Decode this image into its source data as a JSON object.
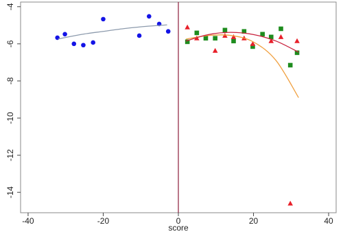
{
  "chart_data": {
    "type": "scatter",
    "x_label": "score",
    "xlim": [
      -42,
      42
    ],
    "xticks": [
      -40,
      -20,
      0,
      20,
      40
    ],
    "ylim": [
      -15.1,
      -3.75
    ],
    "yticks": [
      -4,
      -6,
      -8,
      -10,
      -12,
      -14
    ],
    "reference_line_x": 0,
    "reference_line_color": "#8b1a3a",
    "series": [
      {
        "mode": "markers",
        "shape": "circle",
        "color": "#1414e6",
        "x": [
          -32.2,
          -30.2,
          -27.8,
          -25.3,
          -22.7,
          -20,
          -10.4,
          -7.8,
          -5.1,
          -2.7
        ],
        "values": [
          -5.67,
          -5.48,
          -6.0,
          -6.07,
          -5.93,
          -4.67,
          -5.56,
          -4.52,
          -4.93,
          -5.33
        ]
      },
      {
        "mode": "markers",
        "shape": "square",
        "color": "#1e8c1e",
        "x": [
          2.4,
          4.9,
          7.3,
          9.8,
          12.4,
          14.7,
          17.5,
          19.8,
          22.4,
          24.7,
          27.3,
          29.8,
          31.6
        ],
        "values": [
          -5.89,
          -5.41,
          -5.7,
          -5.7,
          -5.26,
          -5.85,
          -5.33,
          -6.15,
          -5.48,
          -5.63,
          -5.19,
          -7.15,
          -6.48
        ]
      },
      {
        "mode": "markers",
        "shape": "triangle",
        "color": "#e8202a",
        "x": [
          2.4,
          4.9,
          9.8,
          12.4,
          14.7,
          17.5,
          19.8,
          24.7,
          27.3,
          29.8,
          31.6
        ],
        "values": [
          -5.11,
          -5.7,
          -6.37,
          -5.56,
          -5.63,
          -5.7,
          -6.0,
          -5.85,
          -5.63,
          -14.6,
          -5.85
        ]
      },
      {
        "mode": "line",
        "color": "#8c9aac",
        "x": [
          -32,
          -26,
          -20,
          -14,
          -8,
          -3
        ],
        "values": [
          -5.74,
          -5.5,
          -5.33,
          -5.17,
          -5.05,
          -4.98
        ]
      },
      {
        "mode": "line",
        "color": "#f0a040",
        "x": [
          2,
          8,
          14,
          20,
          26,
          32
        ],
        "values": [
          -5.75,
          -5.55,
          -5.55,
          -5.9,
          -6.9,
          -8.9
        ]
      },
      {
        "mode": "line",
        "color": "#c8203c",
        "x": [
          2,
          8,
          14,
          20,
          26,
          32
        ],
        "values": [
          -5.85,
          -5.5,
          -5.38,
          -5.5,
          -5.85,
          -6.45
        ]
      }
    ]
  }
}
